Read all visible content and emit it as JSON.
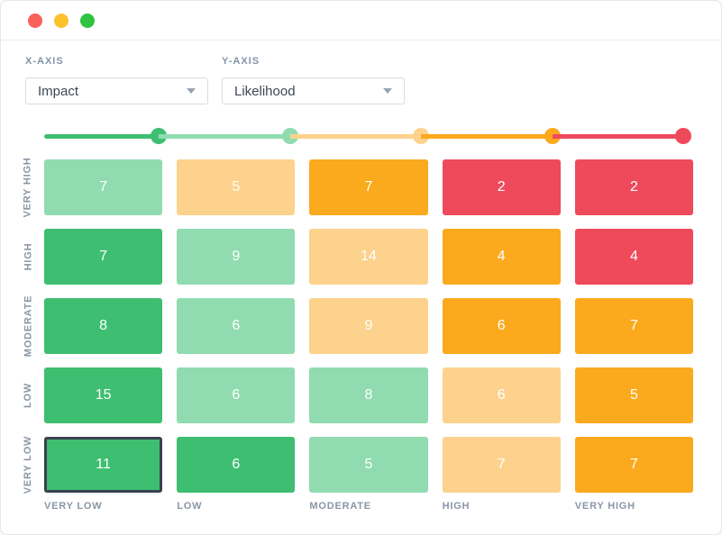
{
  "window": {
    "traffic_lights": [
      {
        "name": "close",
        "color": "#fa615a"
      },
      {
        "name": "minimize",
        "color": "#fcc22d"
      },
      {
        "name": "zoom",
        "color": "#2fc342"
      }
    ]
  },
  "controls": {
    "x_axis": {
      "label": "X-AXIS",
      "value": "Impact"
    },
    "y_axis": {
      "label": "Y-AXIS",
      "value": "Likelihood"
    }
  },
  "legend_slider": {
    "stops": [
      {
        "level": "very-low",
        "color": "#3ebe71"
      },
      {
        "level": "low",
        "color": "#90dcb0"
      },
      {
        "level": "moderate",
        "color": "#fcd28c"
      },
      {
        "level": "high",
        "color": "#fba91d"
      },
      {
        "level": "very-high",
        "color": "#ee4a5b"
      }
    ]
  },
  "chart_data": {
    "type": "heatmap",
    "x_axis_field": "Impact",
    "y_axis_field": "Likelihood",
    "columns": [
      "VERY LOW",
      "LOW",
      "MODERATE",
      "HIGH",
      "VERY HIGH"
    ],
    "rows": [
      "VERY HIGH",
      "HIGH",
      "MODERATE",
      "LOW",
      "VERY LOW"
    ],
    "severity_colors": {
      "very-low": "#3ebe71",
      "low": "#90dcb0",
      "moderate": "#fcd28c",
      "high": "#fba91d",
      "very-high": "#ee4a5b"
    },
    "cells": [
      [
        {
          "value": 7,
          "severity": "low"
        },
        {
          "value": 5,
          "severity": "moderate"
        },
        {
          "value": 7,
          "severity": "high"
        },
        {
          "value": 2,
          "severity": "very-high"
        },
        {
          "value": 2,
          "severity": "very-high"
        }
      ],
      [
        {
          "value": 7,
          "severity": "very-low"
        },
        {
          "value": 9,
          "severity": "low"
        },
        {
          "value": 14,
          "severity": "moderate"
        },
        {
          "value": 4,
          "severity": "high"
        },
        {
          "value": 4,
          "severity": "very-high"
        }
      ],
      [
        {
          "value": 8,
          "severity": "very-low"
        },
        {
          "value": 6,
          "severity": "low"
        },
        {
          "value": 9,
          "severity": "moderate"
        },
        {
          "value": 6,
          "severity": "high"
        },
        {
          "value": 7,
          "severity": "high"
        }
      ],
      [
        {
          "value": 15,
          "severity": "very-low"
        },
        {
          "value": 6,
          "severity": "low"
        },
        {
          "value": 8,
          "severity": "low"
        },
        {
          "value": 6,
          "severity": "moderate"
        },
        {
          "value": 5,
          "severity": "high"
        }
      ],
      [
        {
          "value": 11,
          "severity": "very-low",
          "selected": true
        },
        {
          "value": 6,
          "severity": "very-low"
        },
        {
          "value": 5,
          "severity": "low"
        },
        {
          "value": 7,
          "severity": "moderate"
        },
        {
          "value": 7,
          "severity": "high"
        }
      ]
    ],
    "selected_cell": {
      "row_label": "VERY LOW",
      "column_label": "VERY LOW",
      "value": 11
    }
  }
}
